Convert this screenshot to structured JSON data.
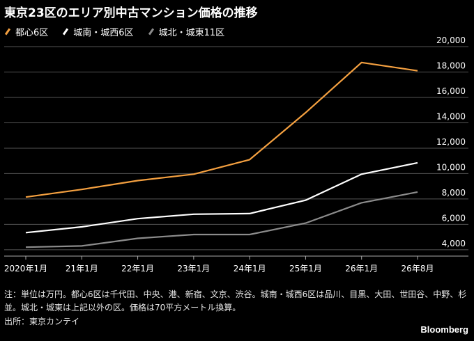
{
  "chart_data": {
    "type": "line",
    "title": "東京23区のエリア別中古マンション価格の推移",
    "categories": [
      "2020年1月",
      "21年1月",
      "22年1月",
      "23年1月",
      "24年1月",
      "25年1月",
      "26年1月",
      "26年8月"
    ],
    "series": [
      {
        "name": "都心6区",
        "color": "#f4a040",
        "values": [
          8150,
          8750,
          9450,
          9950,
          11100,
          14800,
          18750,
          18100
        ]
      },
      {
        "name": "城南・城西6区",
        "color": "#ffffff",
        "values": [
          5350,
          5800,
          6450,
          6800,
          6850,
          7900,
          9950,
          10850
        ]
      },
      {
        "name": "城北・城東11区",
        "color": "#8c8c8c",
        "values": [
          4200,
          4300,
          4900,
          5200,
          5200,
          6100,
          7700,
          8550
        ]
      }
    ],
    "xlabel": "",
    "ylabel": "",
    "ylim": [
      3500,
      20000
    ],
    "yticks": [
      4000,
      6000,
      8000,
      10000,
      12000,
      14000,
      16000,
      18000,
      20000
    ],
    "ytick_labels": [
      "4,000",
      "6,000",
      "8,000",
      "10,000",
      "12,000",
      "14,000",
      "16,000",
      "18,000",
      "20,000"
    ],
    "grid": true,
    "legend_position": "top-left"
  },
  "note": "注：単位は万円。都心6区は千代田、中央、港、新宿、文京、渋谷。城南・城西6区は品川、目黒、大田、世田谷、中野、杉並。城北・城東は上記以外の区。価格は70平方メートル換算。",
  "source": "出所：東京カンテイ",
  "brand": "Bloomberg"
}
